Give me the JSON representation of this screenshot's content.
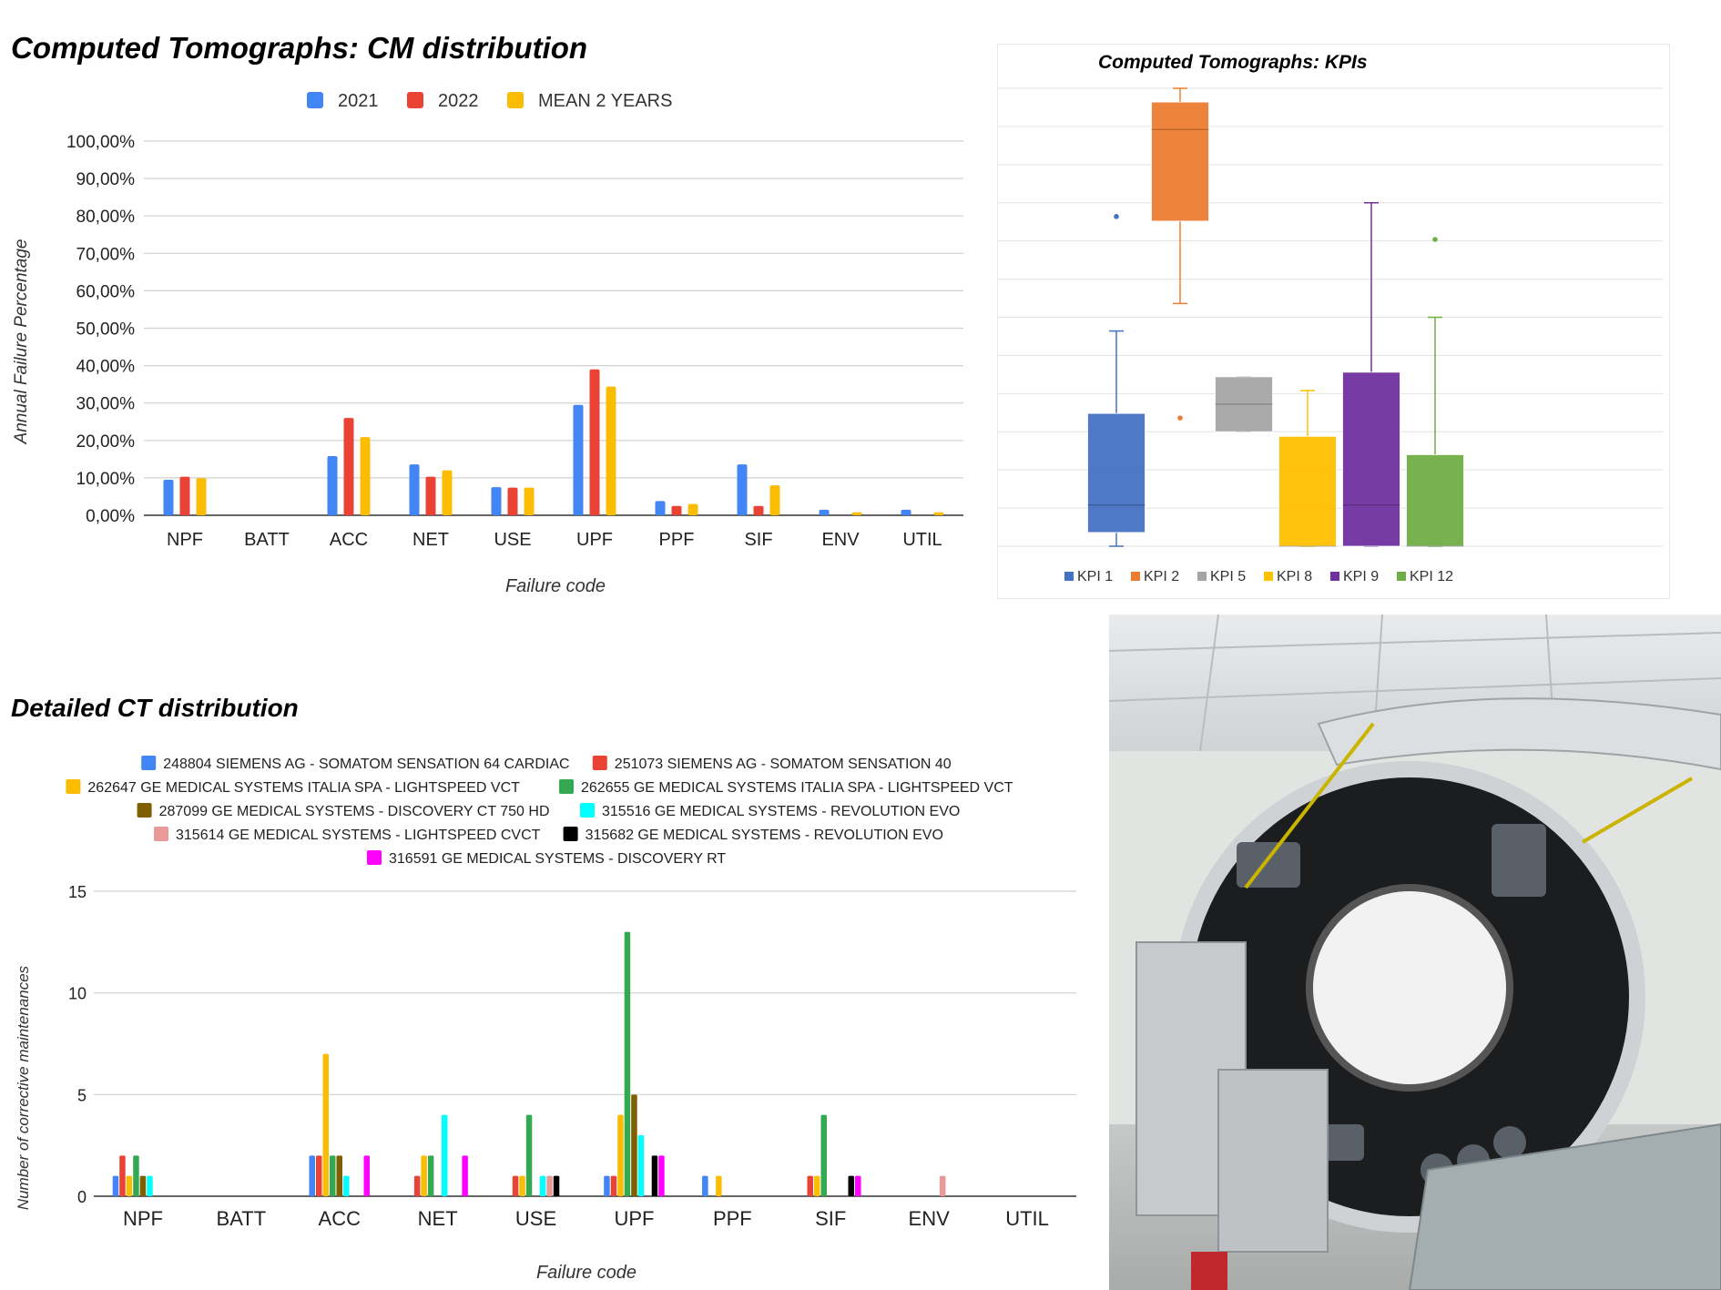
{
  "panels": {
    "cm": {
      "title": "Computed Tomographs: CM distribution"
    },
    "kpi": {
      "title": "Computed Tomographs: KPIs"
    },
    "ct": {
      "title": "Detailed CT distribution"
    }
  },
  "photo": {
    "alt": "CT scanner with open gantry cover"
  },
  "chart_data": [
    {
      "id": "cm",
      "type": "bar",
      "title": "Computed Tomographs: CM distribution",
      "xlabel": "Failure code",
      "ylabel": "Annual Failure Percentage",
      "categories": [
        "NPF",
        "BATT",
        "ACC",
        "NET",
        "USE",
        "UPF",
        "PPF",
        "SIF",
        "ENV",
        "UTIL"
      ],
      "series": [
        {
          "name": "2021",
          "color": "#4285f4",
          "values": [
            9.5,
            0,
            15.8,
            13.6,
            7.5,
            29.5,
            3.8,
            13.6,
            1.5,
            1.5
          ]
        },
        {
          "name": "2022",
          "color": "#ea4335",
          "values": [
            10.3,
            0,
            26.0,
            10.3,
            7.4,
            39.0,
            2.5,
            2.5,
            0,
            0
          ]
        },
        {
          "name": "MEAN 2 YEARS",
          "color": "#fbbc04",
          "values": [
            9.9,
            0,
            20.9,
            12.0,
            7.4,
            34.4,
            3.0,
            8.0,
            0.8,
            0.8
          ]
        }
      ],
      "ylim": [
        0,
        100
      ],
      "yticks": [
        "0,00%",
        "10,00%",
        "20,00%",
        "30,00%",
        "40,00%",
        "50,00%",
        "60,00%",
        "70,00%",
        "80,00%",
        "90,00%",
        "100,00%"
      ],
      "grid": true,
      "legend": "top"
    },
    {
      "id": "kpi",
      "type": "box",
      "title": "Computed Tomographs: KPIs",
      "ylim": [
        0,
        100
      ],
      "grid": true,
      "legend": "bottom",
      "series": [
        {
          "name": "KPI 1",
          "color": "#4472c4",
          "min": 0,
          "q1": 3,
          "median": 9,
          "q3": 29,
          "max": 47,
          "outliers": [
            72
          ]
        },
        {
          "name": "KPI 2",
          "color": "#ed7d31",
          "min": 53,
          "q1": 71,
          "median": 91,
          "q3": 97,
          "max": 100,
          "outliers": [
            28
          ]
        },
        {
          "name": "KPI 5",
          "color": "#a5a5a5",
          "min": 25,
          "q1": 25,
          "median": 31,
          "q3": 37,
          "max": 37,
          "outliers": []
        },
        {
          "name": "KPI 8",
          "color": "#ffc000",
          "min": 0,
          "q1": 0,
          "median": 0,
          "q3": 24,
          "max": 34,
          "outliers": []
        },
        {
          "name": "KPI 9",
          "color": "#7030a0",
          "min": 0,
          "q1": 0,
          "median": 9,
          "q3": 38,
          "max": 75,
          "outliers": []
        },
        {
          "name": "KPI 12",
          "color": "#70ad47",
          "min": 0,
          "q1": 0,
          "median": 0,
          "q3": 20,
          "max": 50,
          "outliers": [
            67
          ]
        }
      ]
    },
    {
      "id": "ct",
      "type": "bar",
      "title": "Detailed CT distribution",
      "xlabel": "Failure code",
      "ylabel": "Number of corrective maintenances",
      "categories": [
        "NPF",
        "BATT",
        "ACC",
        "NET",
        "USE",
        "UPF",
        "PPF",
        "SIF",
        "ENV",
        "UTIL"
      ],
      "ylim": [
        0,
        15
      ],
      "yticks": [
        "0",
        "5",
        "10",
        "15"
      ],
      "grid": true,
      "legend": "top",
      "series": [
        {
          "name": "248804 SIEMENS AG - SOMATOM SENSATION 64 CARDIAC",
          "color": "#4285f4",
          "values": [
            1,
            0,
            2,
            0,
            0,
            1,
            1,
            0,
            0,
            0
          ]
        },
        {
          "name": "251073 SIEMENS AG - SOMATOM SENSATION 40",
          "color": "#ea4335",
          "values": [
            2,
            0,
            2,
            1,
            1,
            1,
            0,
            1,
            0,
            0
          ]
        },
        {
          "name": "262647 GE MEDICAL SYSTEMS ITALIA SPA - LIGHTSPEED VCT",
          "color": "#fbbc04",
          "values": [
            1,
            0,
            7,
            2,
            1,
            4,
            1,
            1,
            0,
            0
          ]
        },
        {
          "name": "262655 GE MEDICAL SYSTEMS ITALIA SPA - LIGHTSPEED VCT",
          "color": "#34a853",
          "values": [
            2,
            0,
            2,
            2,
            4,
            13,
            0,
            4,
            0,
            0
          ]
        },
        {
          "name": "287099 GE MEDICAL SYSTEMS - DISCOVERY CT 750 HD",
          "color": "#7f6000",
          "values": [
            1,
            0,
            2,
            0,
            0,
            5,
            0,
            0,
            0,
            0
          ]
        },
        {
          "name": "315516 GE MEDICAL SYSTEMS - REVOLUTION EVO",
          "color": "#00ffff",
          "values": [
            1,
            0,
            1,
            4,
            1,
            3,
            0,
            0,
            0,
            0
          ]
        },
        {
          "name": "315614 GE MEDICAL SYSTEMS - LIGHTSPEED CVCT",
          "color": "#ea9999",
          "values": [
            0,
            0,
            0,
            0,
            1,
            0,
            0,
            0,
            1,
            0
          ]
        },
        {
          "name": "315682 GE MEDICAL SYSTEMS - REVOLUTION EVO",
          "color": "#000000",
          "values": [
            0,
            0,
            0,
            0,
            1,
            2,
            0,
            1,
            0,
            0
          ]
        },
        {
          "name": "316591 GE MEDICAL SYSTEMS - DISCOVERY RT",
          "color": "#ff00ff",
          "values": [
            0,
            0,
            2,
            2,
            0,
            2,
            0,
            1,
            0,
            0
          ]
        }
      ]
    }
  ]
}
